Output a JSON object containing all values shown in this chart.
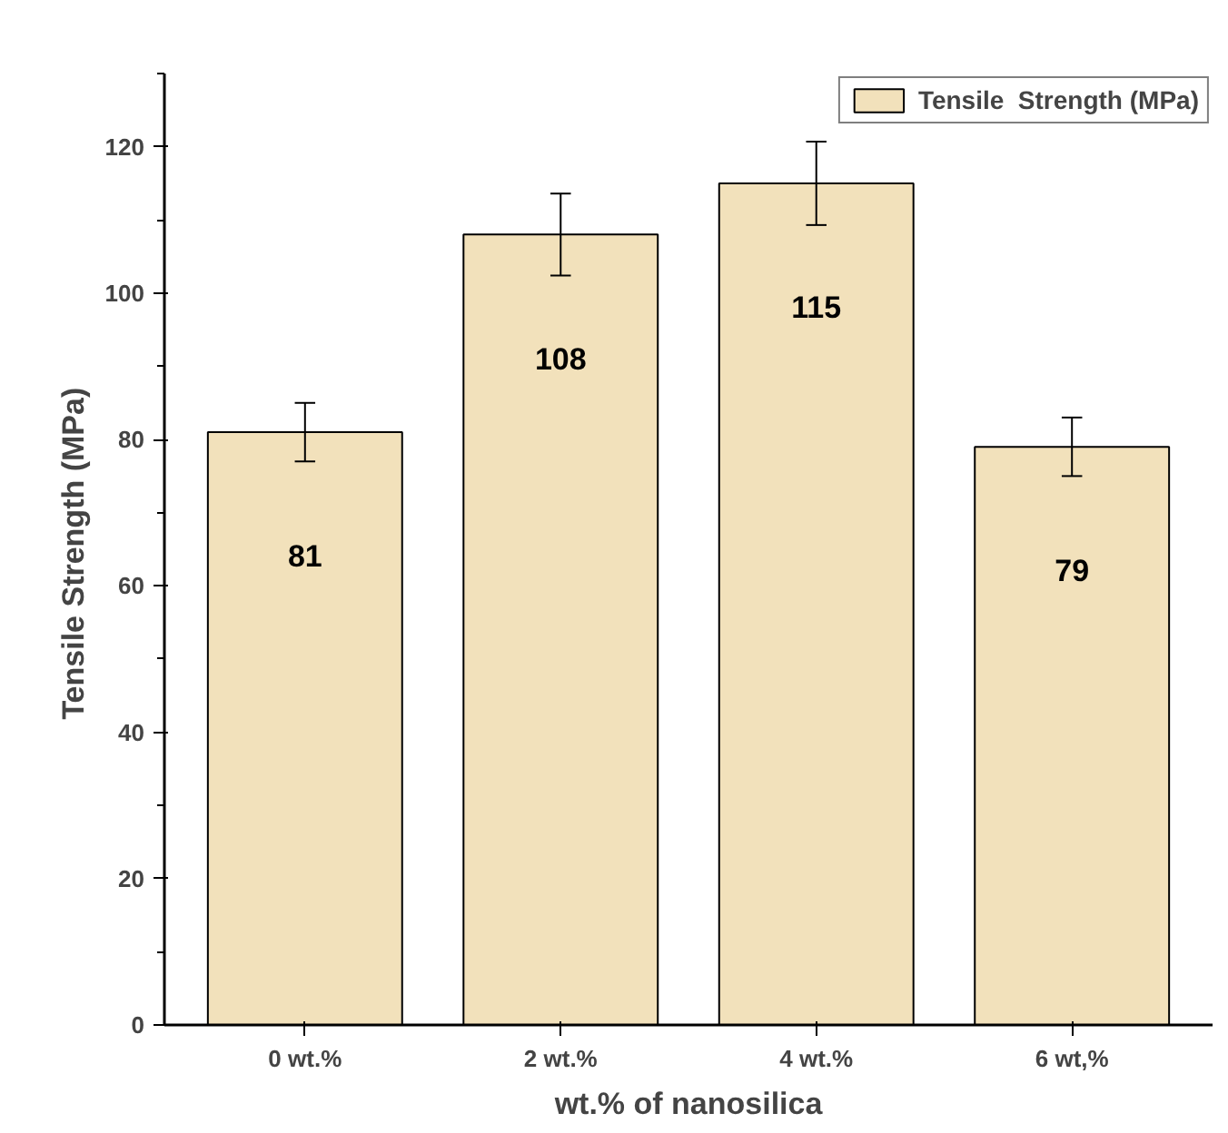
{
  "chart_data": {
    "type": "bar",
    "xlabel": "wt.% of nanosilica",
    "ylabel": "Tensile  Strength (MPa)",
    "categories": [
      "0 wt.%",
      "2 wt.%",
      "4 wt.%",
      "6 wt,%"
    ],
    "series": [
      {
        "name": "Tensile  Strength (MPa)",
        "color": "#f2e1bb",
        "values": [
          81,
          108,
          115,
          79
        ],
        "errors": [
          4,
          5.6,
          5.7,
          4
        ]
      }
    ],
    "ylim": [
      0,
      130
    ],
    "yticks": [
      0,
      20,
      40,
      60,
      80,
      100,
      120
    ],
    "grid": false,
    "legend": "top right",
    "data_labels": true
  }
}
